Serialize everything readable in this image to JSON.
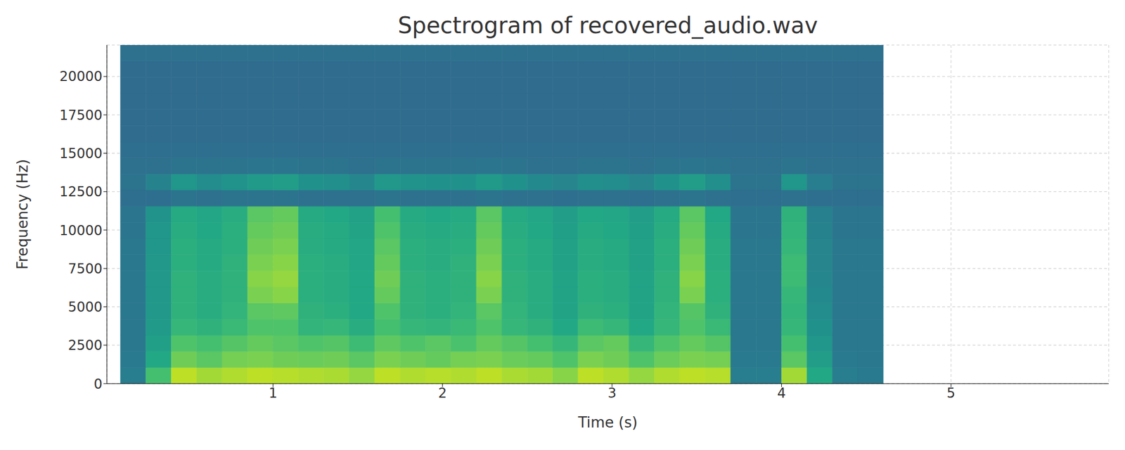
{
  "chart_data": {
    "type": "heatmap",
    "title": "Spectrogram of recovered_audio.wav",
    "x_label": "Time (s)",
    "y_label": "Frequency (Hz)",
    "xlim": [
      0.02,
      5.93
    ],
    "ylim": [
      0,
      22050
    ],
    "xticks": [
      1,
      2,
      3,
      4,
      5
    ],
    "yticks": [
      0,
      2500,
      5000,
      7500,
      10000,
      12500,
      15000,
      17500,
      20000
    ],
    "grid": true,
    "color_range": [
      0,
      100
    ],
    "x_edges": [
      0.1,
      0.25,
      0.4,
      0.55,
      0.7,
      0.85,
      1.0,
      1.15,
      1.3,
      1.45,
      1.6,
      1.75,
      1.9,
      2.05,
      2.2,
      2.35,
      2.5,
      2.65,
      2.8,
      2.95,
      3.1,
      3.25,
      3.4,
      3.55,
      3.7,
      3.85,
      4.0,
      4.15,
      4.3,
      4.45,
      4.6
    ],
    "y_edges": [
      0,
      1050,
      2100,
      3150,
      4200,
      5250,
      6300,
      7350,
      8400,
      9450,
      10500,
      11550,
      12600,
      13650,
      14700,
      15750,
      16800,
      17850,
      18900,
      19950,
      21000,
      22050
    ],
    "cells": [
      [
        42,
        70,
        90,
        86,
        88,
        90,
        89,
        88,
        87,
        84,
        90,
        88,
        89,
        88,
        90,
        87,
        86,
        82,
        90,
        88,
        84,
        88,
        90,
        89,
        42,
        42,
        86,
        60,
        42,
        41
      ],
      [
        41,
        60,
        78,
        74,
        79,
        80,
        78,
        77,
        78,
        74,
        80,
        78,
        76,
        79,
        80,
        77,
        76,
        72,
        80,
        78,
        72,
        77,
        80,
        79,
        41,
        41,
        74,
        55,
        41,
        40
      ],
      [
        40,
        56,
        72,
        70,
        73,
        76,
        74,
        72,
        73,
        68,
        75,
        72,
        74,
        71,
        76,
        73,
        70,
        66,
        74,
        76,
        66,
        72,
        76,
        73,
        40,
        40,
        70,
        52,
        40,
        40
      ],
      [
        40,
        54,
        66,
        64,
        67,
        72,
        72,
        65,
        66,
        62,
        70,
        66,
        65,
        67,
        72,
        66,
        64,
        60,
        68,
        66,
        60,
        66,
        72,
        67,
        40,
        40,
        66,
        50,
        40,
        40
      ],
      [
        40,
        53,
        64,
        62,
        65,
        74,
        75,
        64,
        63,
        60,
        72,
        64,
        63,
        65,
        74,
        65,
        62,
        58,
        64,
        63,
        58,
        65,
        73,
        64,
        40,
        40,
        65,
        48,
        40,
        40
      ],
      [
        40,
        53,
        64,
        62,
        64,
        80,
        82,
        63,
        62,
        60,
        76,
        64,
        63,
        64,
        80,
        64,
        62,
        58,
        63,
        62,
        58,
        64,
        80,
        63,
        40,
        40,
        66,
        47,
        40,
        40
      ],
      [
        40,
        53,
        64,
        62,
        64,
        82,
        84,
        63,
        62,
        60,
        78,
        64,
        63,
        64,
        82,
        64,
        62,
        58,
        63,
        62,
        58,
        64,
        82,
        63,
        40,
        40,
        68,
        46,
        40,
        40
      ],
      [
        40,
        53,
        63,
        61,
        64,
        80,
        82,
        63,
        62,
        59,
        76,
        63,
        62,
        64,
        80,
        63,
        61,
        57,
        62,
        61,
        57,
        63,
        80,
        62,
        40,
        40,
        68,
        45,
        40,
        40
      ],
      [
        40,
        52,
        63,
        61,
        63,
        78,
        80,
        62,
        61,
        59,
        74,
        63,
        62,
        63,
        78,
        63,
        61,
        57,
        62,
        61,
        57,
        63,
        78,
        62,
        40,
        40,
        66,
        45,
        40,
        40
      ],
      [
        39,
        52,
        62,
        60,
        63,
        76,
        78,
        62,
        61,
        58,
        72,
        62,
        61,
        62,
        76,
        62,
        60,
        56,
        61,
        60,
        56,
        62,
        76,
        61,
        39,
        39,
        65,
        44,
        39,
        39
      ],
      [
        39,
        51,
        61,
        59,
        62,
        74,
        76,
        61,
        60,
        57,
        70,
        61,
        60,
        61,
        74,
        61,
        59,
        55,
        60,
        59,
        55,
        61,
        74,
        60,
        39,
        39,
        64,
        43,
        39,
        39
      ],
      [
        36,
        36,
        38,
        37,
        38,
        38,
        38,
        37,
        37,
        37,
        38,
        37,
        37,
        37,
        38,
        37,
        37,
        36,
        37,
        37,
        36,
        37,
        38,
        37,
        36,
        36,
        37,
        36,
        36,
        36
      ],
      [
        38,
        44,
        52,
        48,
        51,
        54,
        55,
        50,
        49,
        46,
        53,
        51,
        50,
        50,
        54,
        50,
        47,
        45,
        49,
        48,
        45,
        50,
        55,
        49,
        38,
        38,
        52,
        42,
        38,
        38
      ],
      [
        37,
        37,
        38,
        38,
        38,
        39,
        39,
        38,
        38,
        37,
        38,
        38,
        38,
        38,
        39,
        38,
        37,
        37,
        38,
        38,
        37,
        38,
        39,
        38,
        37,
        37,
        38,
        37,
        37,
        37
      ],
      [
        36,
        36,
        36,
        36,
        36,
        36,
        36,
        36,
        36,
        36,
        36,
        36,
        36,
        36,
        36,
        36,
        36,
        36,
        36,
        36,
        36,
        36,
        36,
        36,
        36,
        36,
        36,
        36,
        36,
        36
      ],
      [
        35,
        35,
        35,
        35,
        35,
        35,
        35,
        35,
        35,
        35,
        35,
        35,
        35,
        35,
        35,
        35,
        35,
        35,
        35,
        35,
        35,
        35,
        35,
        35,
        35,
        35,
        35,
        35,
        35,
        35
      ],
      [
        35,
        35,
        35,
        35,
        35,
        35,
        35,
        35,
        35,
        35,
        35,
        35,
        35,
        35,
        35,
        35,
        35,
        35,
        35,
        35,
        35,
        35,
        35,
        35,
        35,
        35,
        35,
        35,
        35,
        35
      ],
      [
        35,
        35,
        35,
        35,
        35,
        35,
        35,
        35,
        35,
        35,
        35,
        35,
        35,
        35,
        35,
        35,
        35,
        35,
        35,
        35,
        35,
        35,
        35,
        35,
        35,
        35,
        35,
        35,
        35,
        35
      ],
      [
        35,
        35,
        35,
        35,
        35,
        35,
        35,
        35,
        35,
        35,
        35,
        35,
        35,
        35,
        35,
        35,
        35,
        35,
        35,
        35,
        35,
        35,
        35,
        35,
        35,
        35,
        35,
        35,
        35,
        35
      ],
      [
        35,
        35,
        35,
        35,
        35,
        35,
        35,
        35,
        35,
        35,
        35,
        35,
        35,
        35,
        35,
        35,
        35,
        35,
        35,
        35,
        35,
        35,
        35,
        35,
        35,
        35,
        35,
        35,
        35,
        35
      ],
      [
        37,
        37,
        37,
        37,
        37,
        37,
        37,
        37,
        37,
        37,
        37,
        37,
        37,
        37,
        37,
        37,
        37,
        37,
        37,
        37,
        37,
        37,
        37,
        37,
        37,
        37,
        37,
        37,
        37,
        37
      ]
    ]
  }
}
